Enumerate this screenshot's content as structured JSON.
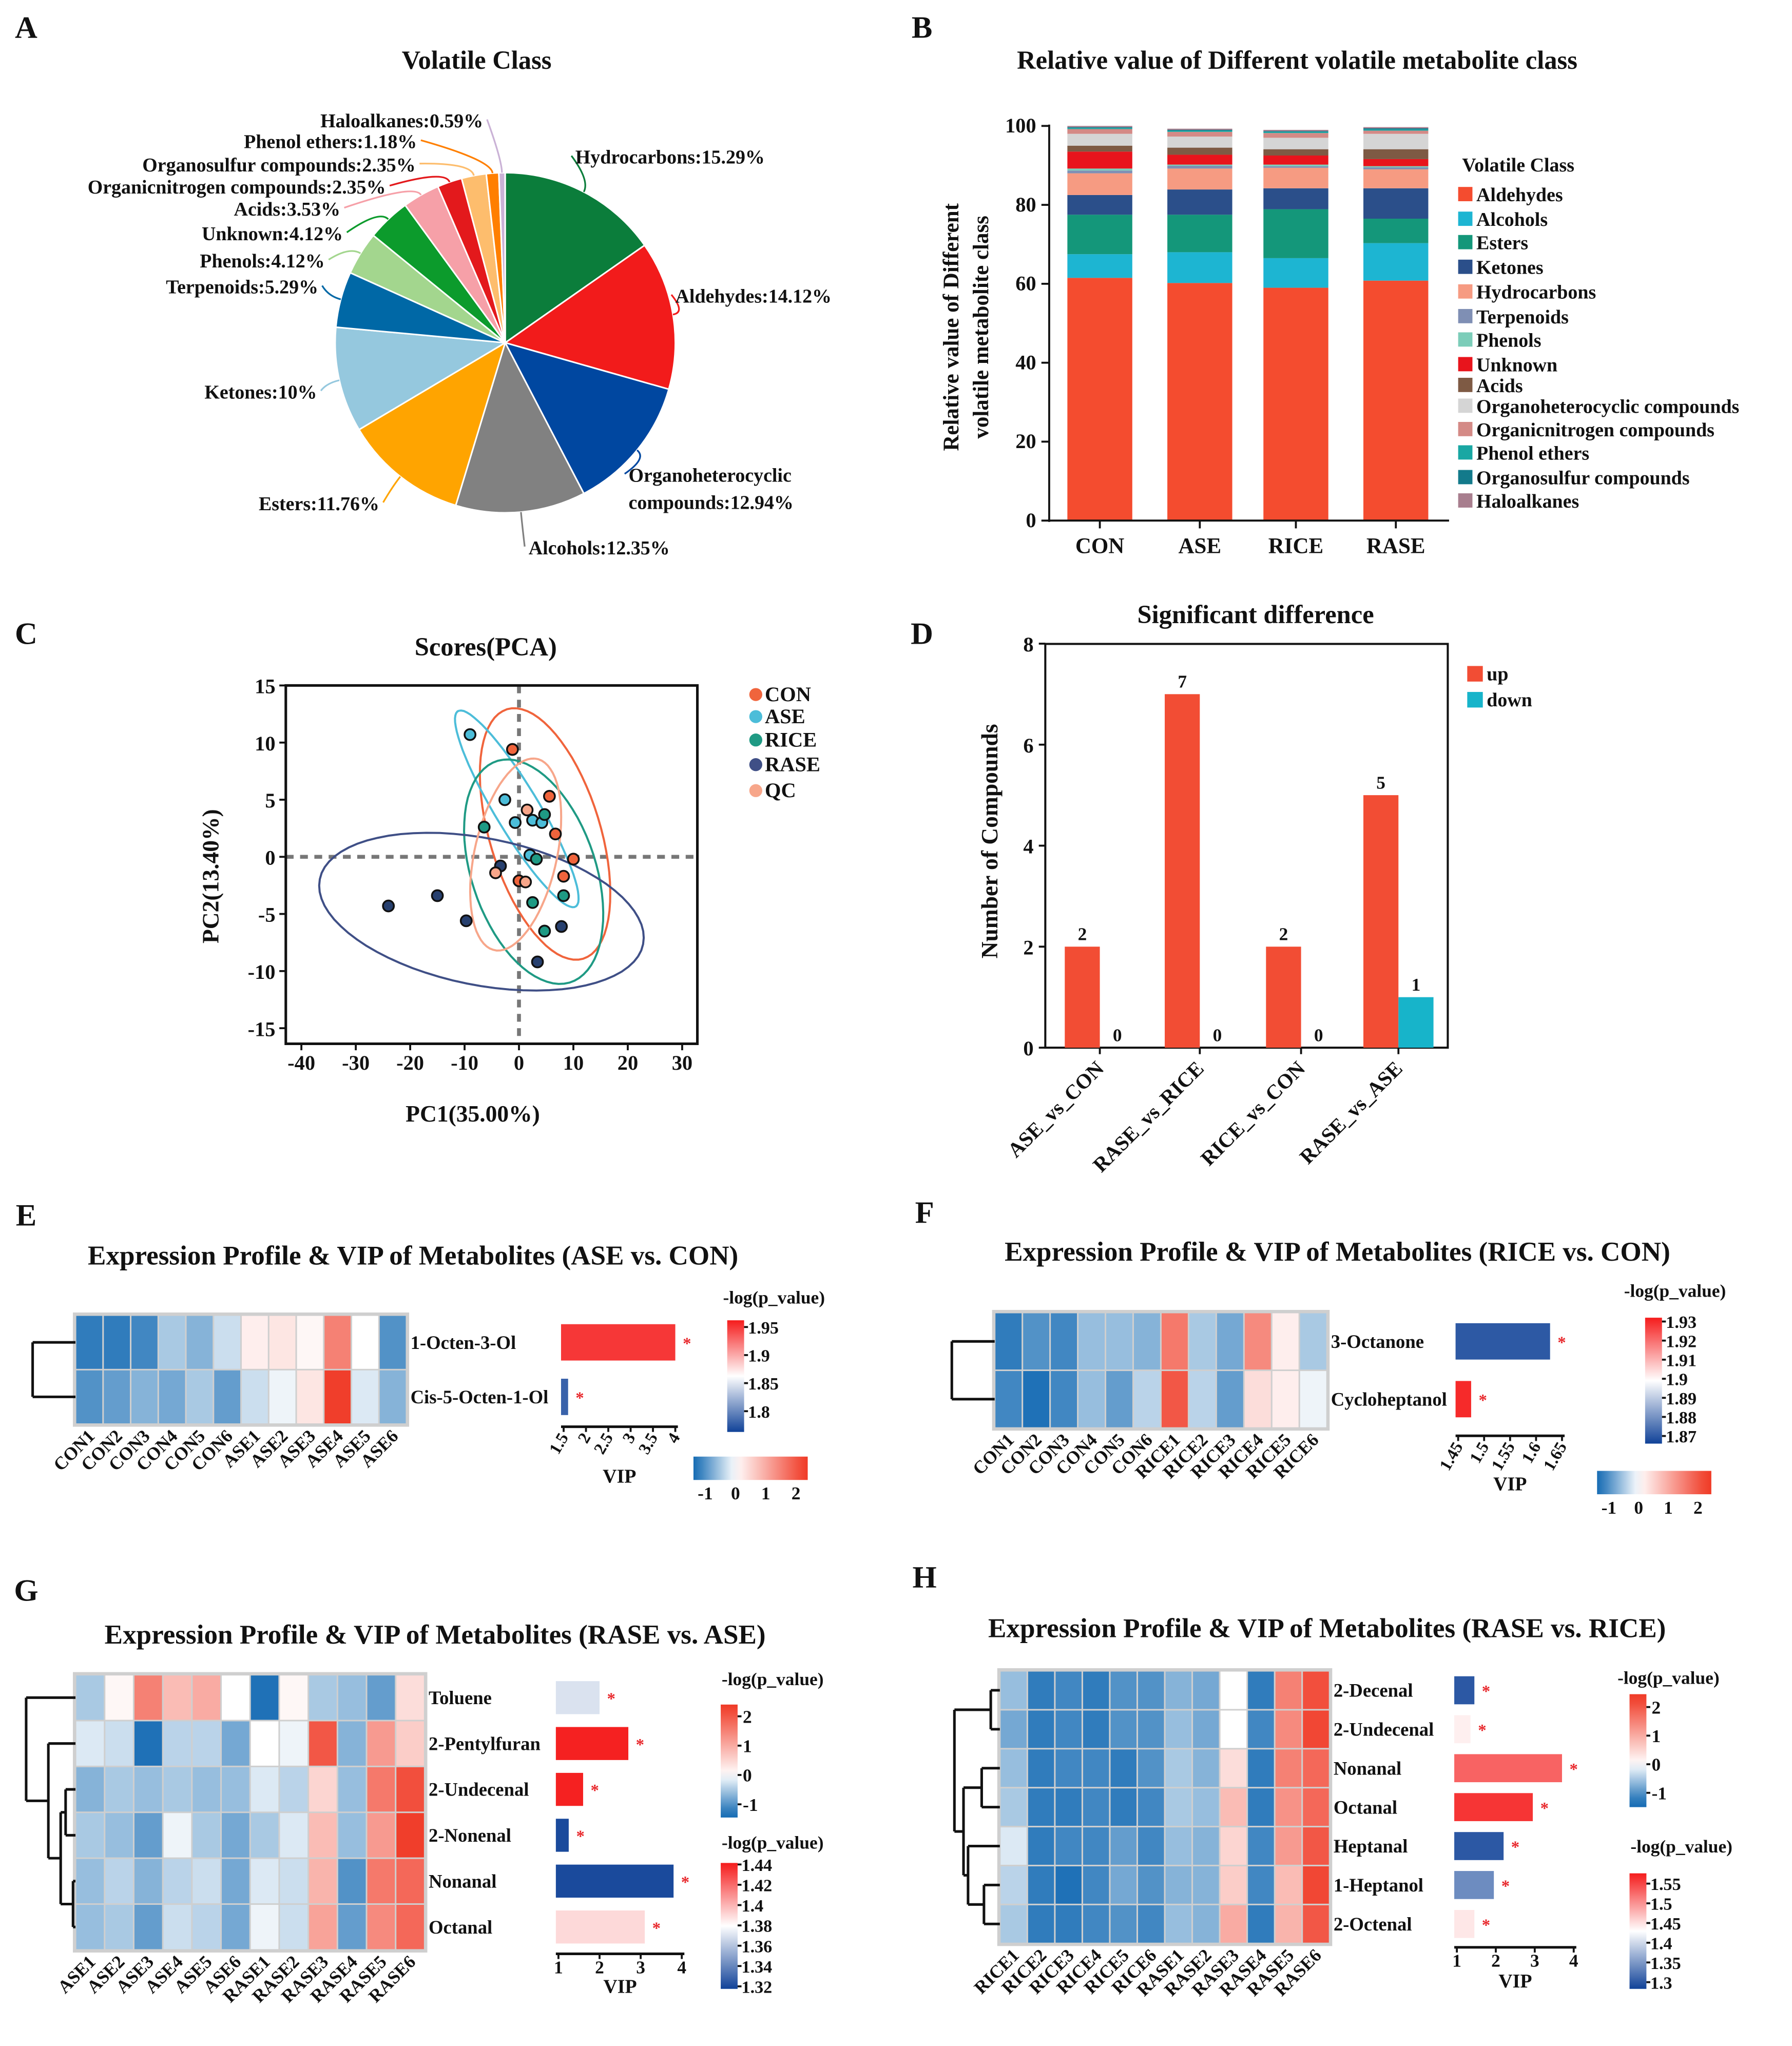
{
  "chart_data": [
    {
      "type": "pie",
      "panel": "A",
      "title": "Volatile Class",
      "slices": [
        {
          "label": "Hydrocarbons",
          "value": 15.29,
          "color": "#0b7d3b",
          "text_lines": [
            "Hydrocarbons:15.29%"
          ]
        },
        {
          "label": "Aldehydes",
          "value": 14.12,
          "color": "#f21b1b",
          "text_lines": [
            "Aldehydes:14.12%"
          ]
        },
        {
          "label": "Organoheterocyclic compounds",
          "value": 12.94,
          "color": "#0047a0",
          "text_lines": [
            "Organoheterocyclic",
            "compounds:12.94%"
          ]
        },
        {
          "label": "Alcohols",
          "value": 12.35,
          "color": "#818181",
          "text_lines": [
            "Alcohols:12.35%"
          ]
        },
        {
          "label": "Esters",
          "value": 11.76,
          "color": "#ffa400",
          "text_lines": [
            "Esters:11.76%"
          ]
        },
        {
          "label": "Ketones",
          "value": 10,
          "color": "#95c8de",
          "text_lines": [
            "Ketones:10%"
          ]
        },
        {
          "label": "Terpenoids",
          "value": 5.29,
          "color": "#0068a6",
          "text_lines": [
            "Terpenoids:5.29%"
          ]
        },
        {
          "label": "Phenols",
          "value": 4.12,
          "color": "#a3d68e",
          "text_lines": [
            "Phenols:4.12%"
          ]
        },
        {
          "label": "Unknown",
          "value": 4.12,
          "color": "#0c9b2c",
          "text_lines": [
            "Unknown:4.12%"
          ]
        },
        {
          "label": "Acids",
          "value": 3.53,
          "color": "#f6a0a8",
          "text_lines": [
            "Acids:3.53%"
          ]
        },
        {
          "label": "Organicnitrogen compounds",
          "value": 2.35,
          "color": "#e3191c",
          "text_lines": [
            "Organicnitrogen compounds:2.35%"
          ]
        },
        {
          "label": "Organosulfur compounds",
          "value": 2.35,
          "color": "#fdbd6d",
          "text_lines": [
            "Organosulfur compounds:2.35%"
          ]
        },
        {
          "label": "Phenol ethers",
          "value": 1.18,
          "color": "#ff7f00",
          "text_lines": [
            "Phenol ethers:1.18%"
          ]
        },
        {
          "label": "Haloalkanes",
          "value": 0.59,
          "color": "#cab2d6",
          "text_lines": [
            "Haloalkanes:0.59%"
          ]
        }
      ]
    },
    {
      "type": "bar",
      "stacked": true,
      "panel": "B",
      "title": "Relative value of Different volatile metabolite class",
      "ylabel_lines": [
        "Relative value of Different",
        "volatile metabolite class"
      ],
      "xlabel": "",
      "categories": [
        "CON",
        "ASE",
        "RICE",
        "RASE"
      ],
      "ylim": [
        0,
        100
      ],
      "yticks": [
        "0",
        "20",
        "40",
        "60",
        "80",
        "100"
      ],
      "legend_title": "Volatile Class",
      "legend_position": "right",
      "series": [
        {
          "name": "Aldehydes",
          "color": "#f44c2f",
          "values": [
            61.5,
            60.2,
            59.0,
            60.8
          ]
        },
        {
          "name": "Alcohols",
          "color": "#1db5d2",
          "values": [
            6.0,
            7.8,
            7.5,
            9.5
          ]
        },
        {
          "name": "Esters",
          "color": "#14977a",
          "values": [
            10.0,
            9.5,
            12.4,
            6.2
          ]
        },
        {
          "name": "Ketones",
          "color": "#2b4f8a",
          "values": [
            5.0,
            6.4,
            5.3,
            7.7
          ]
        },
        {
          "name": "Hydrocarbons",
          "color": "#f69b82",
          "values": [
            5.5,
            5.3,
            5.2,
            4.8
          ]
        },
        {
          "name": "Terpenoids",
          "color": "#7f8fb4",
          "values": [
            0.7,
            0.7,
            0.4,
            0.5
          ]
        },
        {
          "name": "Phenols",
          "color": "#7ccdb9",
          "values": [
            0.5,
            0.3,
            0.4,
            0.3
          ]
        },
        {
          "name": "Unknown",
          "color": "#e8141c",
          "values": [
            4.3,
            2.5,
            2.3,
            1.8
          ]
        },
        {
          "name": "Acids",
          "color": "#7e5a44",
          "values": [
            1.5,
            1.8,
            1.6,
            2.5
          ]
        },
        {
          "name": "Organoheterocyclic compounds",
          "color": "#d5d5d5",
          "values": [
            3.0,
            2.8,
            2.9,
            3.9
          ]
        },
        {
          "name": "Organicnitrogen compounds",
          "color": "#d48a86",
          "values": [
            1.2,
            1.2,
            1.2,
            0.8
          ]
        },
        {
          "name": "Phenol ethers",
          "color": "#19a7a3",
          "values": [
            0.3,
            0.3,
            0.3,
            0.3
          ]
        },
        {
          "name": "Organosulfur compounds",
          "color": "#137a8b",
          "values": [
            0.2,
            0.2,
            0.2,
            0.3
          ]
        },
        {
          "name": "Haloalkanes",
          "color": "#a87e8e",
          "values": [
            0.3,
            0.3,
            0.3,
            0.3
          ]
        }
      ]
    },
    {
      "type": "scatter",
      "panel": "C",
      "title": "Scores(PCA)",
      "xlabel": "PC1(35.00%)",
      "ylabel": "PC2(13.40%)",
      "xlim": [
        -44,
        33.5
      ],
      "ylim": [
        -16.4,
        15
      ],
      "xticks": [
        "-40",
        "-30",
        "-20",
        "-10",
        "0",
        "10",
        "20",
        "30"
      ],
      "yticks": [
        "15",
        "10",
        "5",
        "0",
        "-5",
        "-10",
        "-15"
      ],
      "legend_position": "right",
      "groups": [
        {
          "name": "CON",
          "color": "#f0643c",
          "points": [
            [
              -1.2,
              9.4
            ],
            [
              5.6,
              5.3
            ],
            [
              6.7,
              2.0
            ],
            [
              10.0,
              -0.2
            ],
            [
              8.2,
              -1.7
            ],
            [
              0.0,
              -2.1
            ]
          ],
          "ellipse": {
            "center": [
              4.8,
              2.0
            ],
            "axis1": [
              -5.2,
              11.0
            ],
            "axis2": [
              10.8,
              -0.5
            ]
          }
        },
        {
          "name": "ASE",
          "color": "#4cbdd9",
          "points": [
            [
              -9.0,
              10.7
            ],
            [
              -2.6,
              5.0
            ],
            [
              -0.7,
              3.0
            ],
            [
              2.5,
              3.2
            ],
            [
              4.2,
              3.0
            ],
            [
              2.0,
              0.15
            ]
          ],
          "ellipse": {
            "center": [
              -0.4,
              4.2
            ],
            "axis1": [
              -10.6,
              8.6
            ],
            "axis2": [
              4.1,
              0.5
            ]
          }
        },
        {
          "name": "RICE",
          "color": "#1f9a84",
          "points": [
            [
              -6.4,
              2.6
            ],
            [
              4.7,
              3.7
            ],
            [
              3.2,
              -0.2
            ],
            [
              8.2,
              -3.4
            ],
            [
              2.5,
              -4.0
            ],
            [
              4.7,
              -6.5
            ]
          ],
          "ellipse": {
            "center": [
              2.7,
              -1.3
            ],
            "axis1": [
              -5.6,
              9.8
            ],
            "axis2": [
              11.5,
              0.65
            ]
          }
        },
        {
          "name": "RASE",
          "color": "#3f4f86",
          "point_color": "#27406f",
          "points": [
            [
              -24.0,
              -4.3
            ],
            [
              -15.0,
              -3.4
            ],
            [
              -9.7,
              -5.6
            ],
            [
              -3.4,
              -0.8
            ],
            [
              7.8,
              -6.1
            ],
            [
              3.4,
              -9.2
            ]
          ],
          "ellipse": {
            "center": [
              -6.9,
              -4.8
            ],
            "axis1": [
              28.8,
              -3.9
            ],
            "axis2": [
              -7.8,
              -5.7
            ]
          }
        },
        {
          "name": "QC",
          "color": "#f7a68a",
          "points": [
            [
              1.5,
              4.1
            ],
            [
              -4.3,
              -1.4
            ],
            [
              1.2,
              -2.2
            ]
          ],
          "ellipse": {
            "center": [
              -0.6,
              0.2
            ],
            "axis1": [
              3.5,
              8.4
            ],
            "axis2": [
              7.6,
              -0.3
            ]
          }
        }
      ]
    },
    {
      "type": "bar",
      "panel": "D",
      "title": "Significant difference",
      "ylabel": "Number of Compounds",
      "xlabel": "",
      "categories": [
        "ASE_vs_CON",
        "RASE_vs_RICE",
        "RICE_vs_CON",
        "RASE_vs_ASE"
      ],
      "ylim": [
        0,
        8
      ],
      "yticks": [
        "0",
        "2",
        "4",
        "6",
        "8"
      ],
      "legend_position": "top-right",
      "series": [
        {
          "name": "up",
          "color": "#f24d34",
          "values": [
            2,
            7,
            2,
            5
          ],
          "labels": [
            "2",
            "7",
            "2",
            "5"
          ]
        },
        {
          "name": "down",
          "color": "#17b4ca",
          "values": [
            0,
            0,
            0,
            1
          ],
          "labels": [
            "0",
            "0",
            "0",
            "1"
          ]
        }
      ]
    },
    {
      "type": "heatmap",
      "panel": "E",
      "title": "Expression Profile & VIP of Metabolites (ASE vs. CON)",
      "rows": [
        "1-Octen-3-Ol",
        "Cis-5-Octen-1-Ol"
      ],
      "columns": [
        "CON1",
        "CON2",
        "CON3",
        "CON4",
        "CON5",
        "CON6",
        "ASE1",
        "ASE2",
        "ASE3",
        "ASE4",
        "ASE5",
        "ASE6"
      ],
      "values": [
        [
          -1.2,
          -1.2,
          -1.1,
          -0.5,
          -0.7,
          -0.3,
          0.2,
          0.3,
          0.1,
          1.5,
          0.0,
          -1.0
        ],
        [
          -1.0,
          -0.9,
          -0.7,
          -0.8,
          -0.5,
          -0.9,
          -0.3,
          -0.1,
          0.3,
          2.3,
          -0.2,
          -0.7
        ]
      ],
      "vip": [
        4.0,
        1.6
      ],
      "neglog_p": [
        1.95,
        1.78
      ],
      "significance": [
        "*",
        "*"
      ],
      "vip_label": "VIP",
      "vip_ticks": [
        "1.5",
        "2",
        "2.5",
        "3",
        "3.5",
        "4"
      ],
      "p_title": "-log(p_value)",
      "p_ticks": [
        "1.95",
        "1.9",
        "1.85",
        "1.8"
      ],
      "z_ticks": [
        "-1",
        "0",
        "1",
        "2"
      ]
    },
    {
      "type": "heatmap",
      "panel": "F",
      "title": "Expression Profile & VIP of Metabolites (RICE vs. CON)",
      "rows": [
        "3-Octanone",
        "Cycloheptanol"
      ],
      "columns": [
        "CON1",
        "CON2",
        "CON3",
        "CON4",
        "CON5",
        "CON6",
        "RICE1",
        "RICE2",
        "RICE3",
        "RICE4",
        "RICE5",
        "RICE6"
      ],
      "values": [
        [
          -1.2,
          -1.0,
          -1.1,
          -0.6,
          -0.6,
          -0.7,
          1.6,
          -0.5,
          -0.8,
          1.4,
          0.2,
          -0.5
        ],
        [
          -1.1,
          -1.3,
          -1.1,
          -0.6,
          -0.9,
          -0.4,
          2.0,
          -0.4,
          -0.9,
          0.4,
          0.2,
          -0.1
        ]
      ],
      "vip": [
        1.627,
        1.475
      ],
      "neglog_p": [
        1.87,
        1.93
      ],
      "significance": [
        "*",
        "*"
      ],
      "vip_label": "VIP",
      "vip_ticks": [
        "1.45",
        "1.5",
        "1.55",
        "1.6",
        "1.65"
      ],
      "p_title": "-log(p_value)",
      "p_ticks": [
        "1.93",
        "1.92",
        "1.91",
        "1.9",
        "1.89",
        "1.88",
        "1.87"
      ],
      "z_ticks": [
        "-1",
        "0",
        "1",
        "2"
      ]
    },
    {
      "type": "heatmap",
      "panel": "G",
      "title": "Expression Profile & VIP of Metabolites (RASE vs. ASE)",
      "rows": [
        "Toluene",
        "2-Pentylfuran",
        "2-Undecenal",
        "2-Nonenal",
        "Nonanal",
        "Octanal"
      ],
      "columns": [
        "ASE1",
        "ASE2",
        "ASE3",
        "ASE4",
        "ASE5",
        "ASE6",
        "RASE1",
        "RASE2",
        "RASE3",
        "RASE4",
        "RASE5",
        "RASE6"
      ],
      "values": [
        [
          -0.5,
          0.1,
          1.5,
          0.8,
          1.0,
          0.0,
          -1.3,
          0.1,
          -0.5,
          -0.6,
          -0.9,
          0.4
        ],
        [
          -0.2,
          -0.3,
          -1.3,
          -0.4,
          -0.4,
          -0.8,
          0.0,
          -0.1,
          2.0,
          -0.7,
          1.2,
          0.6
        ],
        [
          -0.7,
          -0.5,
          -0.6,
          -0.5,
          -0.6,
          -0.6,
          -0.2,
          -0.4,
          0.5,
          -0.6,
          1.6,
          2.1
        ],
        [
          -0.5,
          -0.6,
          -0.9,
          -0.1,
          -0.5,
          -0.8,
          -0.5,
          -0.2,
          0.8,
          -0.6,
          1.2,
          2.3
        ],
        [
          -0.6,
          -0.4,
          -0.7,
          -0.4,
          -0.3,
          -0.8,
          -0.2,
          -0.3,
          0.9,
          -1.0,
          1.6,
          1.8
        ],
        [
          -0.6,
          -0.5,
          -0.9,
          -0.3,
          -0.4,
          -0.8,
          -0.1,
          -0.3,
          1.1,
          -0.9,
          1.4,
          1.8
        ]
      ],
      "vip": [
        2.0,
        2.7,
        1.6,
        1.25,
        3.8,
        3.1
      ],
      "neglog_p": [
        1.37,
        1.44,
        1.44,
        1.32,
        1.32,
        1.39
      ],
      "significance": [
        "*",
        "*",
        "*",
        "*",
        "*",
        "*"
      ],
      "vip_label": "VIP",
      "vip_ticks": [
        "1",
        "2",
        "3",
        "4"
      ],
      "z_title": "-log(p_value)",
      "z_ticks": [
        "2",
        "1",
        "0",
        "-1"
      ],
      "p_title": "-log(p_value)",
      "p_ticks": [
        "1.44",
        "1.42",
        "1.4",
        "1.38",
        "1.36",
        "1.34",
        "1.32"
      ]
    },
    {
      "type": "heatmap",
      "panel": "H",
      "title": "Expression Profile & VIP of Metabolites (RASE vs. RICE)",
      "rows": [
        "2-Decenal",
        "2-Undecenal",
        "Nonanal",
        "Octanal",
        "Heptanal",
        "1-Heptanol",
        "2-Octenal"
      ],
      "columns": [
        "RICE1",
        "RICE2",
        "RICE3",
        "RICE4",
        "RICE5",
        "RICE6",
        "RASE1",
        "RASE2",
        "RASE3",
        "RASE4",
        "RASE5",
        "RASE6"
      ],
      "values": [
        [
          -0.6,
          -1.2,
          -1.1,
          -1.2,
          -1.0,
          -1.0,
          -0.7,
          -0.8,
          0.0,
          -1.2,
          1.5,
          2.1
        ],
        [
          -0.8,
          -1.2,
          -1.1,
          -1.2,
          -1.0,
          -1.0,
          -0.6,
          -0.8,
          0.0,
          -1.1,
          1.4,
          2.2
        ],
        [
          -0.6,
          -1.2,
          -1.1,
          -1.1,
          -1.2,
          -1.0,
          -0.5,
          -0.7,
          0.4,
          -1.2,
          1.5,
          1.8
        ],
        [
          -0.5,
          -1.2,
          -1.2,
          -1.1,
          -1.2,
          -1.1,
          -0.5,
          -0.6,
          0.8,
          -1.2,
          1.3,
          1.8
        ],
        [
          -0.2,
          -1.2,
          -1.1,
          -1.1,
          -0.9,
          -1.1,
          -0.6,
          -0.7,
          0.5,
          -1.1,
          1.2,
          2.0
        ],
        [
          -0.4,
          -1.2,
          -1.3,
          -1.1,
          -0.8,
          -1.0,
          -0.7,
          -0.7,
          0.6,
          -1.1,
          0.8,
          2.2
        ],
        [
          -0.5,
          -1.2,
          -1.2,
          -1.1,
          -1.0,
          -1.1,
          -0.6,
          -0.7,
          1.0,
          -1.2,
          0.9,
          2.0
        ]
      ],
      "vip": [
        1.45,
        1.35,
        3.7,
        2.95,
        2.2,
        1.95,
        1.45
      ],
      "neglog_p": [
        1.3,
        1.44,
        1.53,
        1.56,
        1.3,
        1.34,
        1.445
      ],
      "significance": [
        "*",
        "*",
        "*",
        "*",
        "*",
        "*",
        "*"
      ],
      "vip_label": "VIP",
      "vip_ticks": [
        "1",
        "2",
        "3",
        "4"
      ],
      "z_title": "-log(p_value)",
      "z_ticks": [
        "2",
        "1",
        "0",
        "-1"
      ],
      "p_title": "-log(p_value)",
      "p_ticks": [
        "1.55",
        "1.5",
        "1.45",
        "1.4",
        "1.35",
        "1.3"
      ]
    }
  ]
}
